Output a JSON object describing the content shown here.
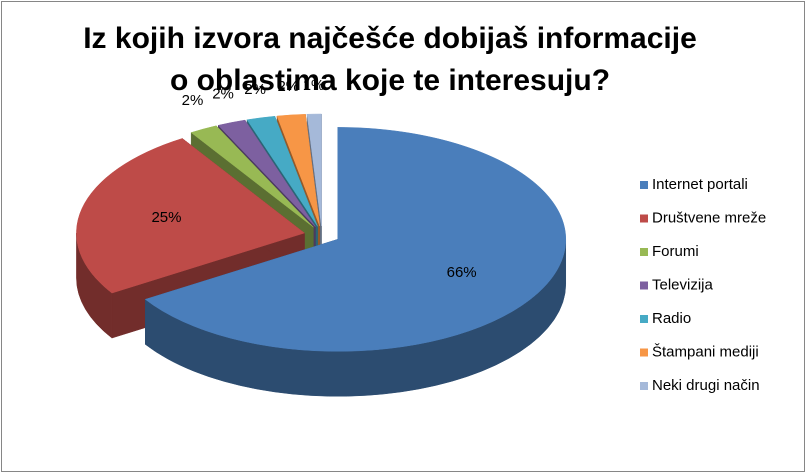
{
  "chart_data": {
    "type": "pie",
    "title": "Iz kojih izvora najčešće dobijaš informacije o oblastima koje te interesuju?",
    "categories": [
      "Internet portali",
      "Društvene mreže",
      "Forumi",
      "Televizija",
      "Radio",
      "Štampani mediji",
      "Neki drugi način"
    ],
    "values": [
      66,
      25,
      2,
      2,
      2,
      2,
      1
    ],
    "value_labels": [
      "66%",
      "25%",
      "2%",
      "2%",
      "2%",
      "2%",
      "1%"
    ],
    "colors": [
      "#4a7ebb",
      "#be4b48",
      "#98b954",
      "#7d60a0",
      "#46aac5",
      "#f79646",
      "#a5b9d9"
    ],
    "legend": "right"
  }
}
